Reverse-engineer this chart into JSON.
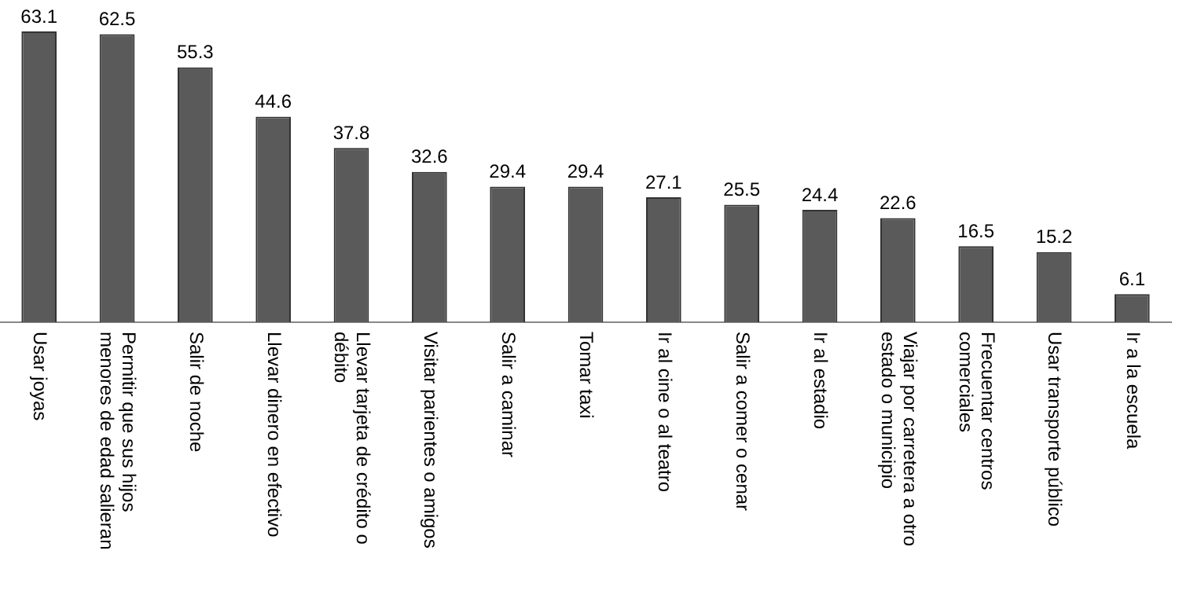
{
  "chart_data": {
    "type": "bar",
    "categories": [
      "Usar joyas",
      "Permitir que sus hijos menores de edad salieran",
      "Salir de noche",
      "Llevar dinero en efectivo",
      "Llevar tarjeta de crédito o débito",
      "Visitar parientes o amigos",
      "Salir a caminar",
      "Tomar taxi",
      "Ir al cine o al teatro",
      "Salir a comer o cenar",
      "Ir al estadio",
      "Viajar por carretera a otro estado o municipio",
      "Frecuentar centros comerciales",
      "Usar transporte público",
      "Ir a la escuela"
    ],
    "values": [
      63.1,
      62.5,
      55.3,
      44.6,
      37.8,
      32.6,
      29.4,
      29.4,
      27.1,
      25.5,
      24.4,
      22.6,
      16.5,
      15.2,
      6.1
    ],
    "color": "#5a5a5a",
    "data_labels": true,
    "grid": false,
    "legend": false,
    "tick_labels": "x"
  }
}
